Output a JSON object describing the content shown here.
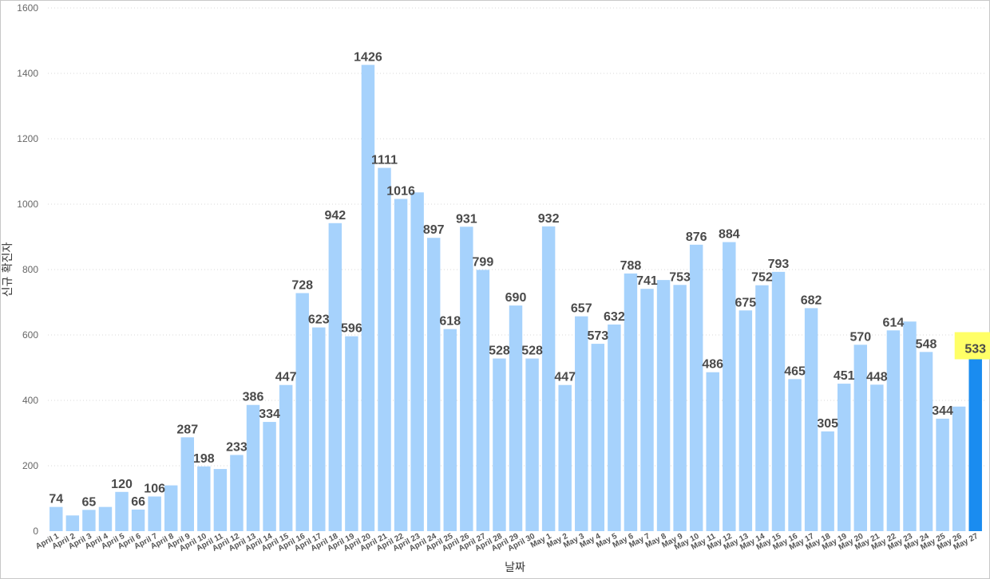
{
  "chart_data": {
    "type": "bar",
    "title": "",
    "xlabel": "날짜",
    "ylabel": "신규 확진자",
    "ylim": [
      0,
      1600
    ],
    "yticks": [
      0,
      200,
      400,
      600,
      800,
      1000,
      1200,
      1400,
      1600
    ],
    "grid": true,
    "colors": {
      "bar": "#a6d2fc",
      "highlight": "#1a8cf0",
      "highlight_top": "#1f7a3c",
      "highlight_label_bg": "#ffff66",
      "grid": "#d9d9d9"
    },
    "highlight_index": 56,
    "categories": [
      "April 1",
      "April 2",
      "April 3",
      "April 4",
      "April 5",
      "April 6",
      "April 7",
      "April 8",
      "April 9",
      "April 10",
      "April 11",
      "April 12",
      "April 13",
      "April 14",
      "April 15",
      "April 16",
      "April 17",
      "April 18",
      "April 19",
      "April 20",
      "April 21",
      "April 22",
      "April 23",
      "April 24",
      "April 25",
      "April 26",
      "April 27",
      "April 28",
      "April 29",
      "April 30",
      "May 1",
      "May 2",
      "May 3",
      "May 4",
      "May 5",
      "May 6",
      "May 7",
      "May 8",
      "May 9",
      "May 10",
      "May 11",
      "May 12",
      "May 13",
      "May 14",
      "May 15",
      "May 16",
      "May 17",
      "May 18",
      "May 19",
      "May 20",
      "May 21",
      "May 22",
      "May 23",
      "May 24",
      "May 25",
      "May 26",
      "May 27"
    ],
    "values": [
      74,
      48,
      65,
      74,
      120,
      66,
      106,
      140,
      287,
      198,
      190,
      233,
      386,
      334,
      447,
      728,
      623,
      942,
      596,
      1426,
      1111,
      1016,
      1036,
      897,
      618,
      931,
      799,
      528,
      690,
      528,
      932,
      447,
      657,
      573,
      632,
      788,
      741,
      768,
      753,
      876,
      486,
      884,
      675,
      752,
      793,
      465,
      682,
      305,
      451,
      570,
      448,
      614,
      641,
      548,
      344,
      381,
      533
    ],
    "labels": [
      "74",
      "",
      "65",
      "",
      "120",
      "66",
      "106",
      "",
      "287",
      "198",
      "",
      "233",
      "386",
      "334",
      "447",
      "728",
      "623",
      "942",
      "596",
      "1426",
      "1111",
      "1016",
      "",
      "897",
      "618",
      "931",
      "799",
      "528",
      "690",
      "528",
      "932",
      "447",
      "657",
      "573",
      "632",
      "788",
      "741",
      "",
      "753",
      "876",
      "486",
      "884",
      "675",
      "752",
      "793",
      "465",
      "682",
      "305",
      "451",
      "570",
      "448",
      "614",
      "",
      "548",
      "344",
      "",
      "533"
    ]
  }
}
